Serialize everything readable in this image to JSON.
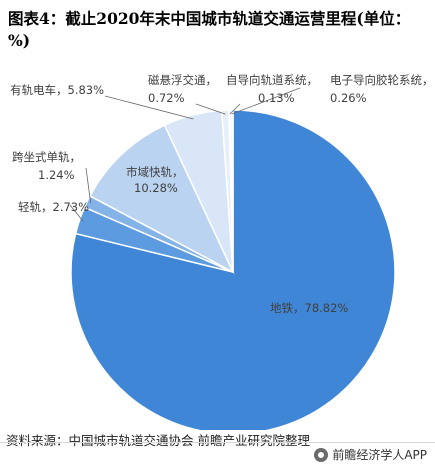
{
  "chart_data": {
    "type": "pie",
    "title": "图表4：截止2020年末中国城市轨道交通运营里程(单位：%)",
    "slices": [
      {
        "name": "地铁",
        "value": 78.82,
        "label": "地铁，78.82%",
        "color": "#3f86d6"
      },
      {
        "name": "轻轨",
        "value": 2.73,
        "label": "轻轨，2.73%",
        "color": "#5d9be0"
      },
      {
        "name": "跨坐式单轨",
        "value": 1.24,
        "label": "跨坐式单轨，1.24%",
        "color": "#84b3e8"
      },
      {
        "name": "市域快轨",
        "value": 10.28,
        "label": "市域快轨，10.28%",
        "color": "#b9d3f1"
      },
      {
        "name": "有轨电车",
        "value": 5.83,
        "label": "有轨电车，5.83%",
        "color": "#d8e6f7"
      },
      {
        "name": "磁悬浮交通",
        "value": 0.72,
        "label": "磁悬浮交通，0.72%",
        "color": "#e7eff9"
      },
      {
        "name": "自导向轨道系统",
        "value": 0.13,
        "label": "自导向轨道系统，0.13%",
        "color": "#c8daf2"
      },
      {
        "name": "电子导向胶轮系统",
        "value": 0.26,
        "label": "电子导向胶轮系统，0.26%",
        "color": "#f2f6fc"
      }
    ]
  },
  "source": "资料来源：中国城市轨道交通协会 前瞻产业研究院整理",
  "footer": {
    "brand": "前瞻经济学人APP",
    "icon": "wechat-icon"
  }
}
